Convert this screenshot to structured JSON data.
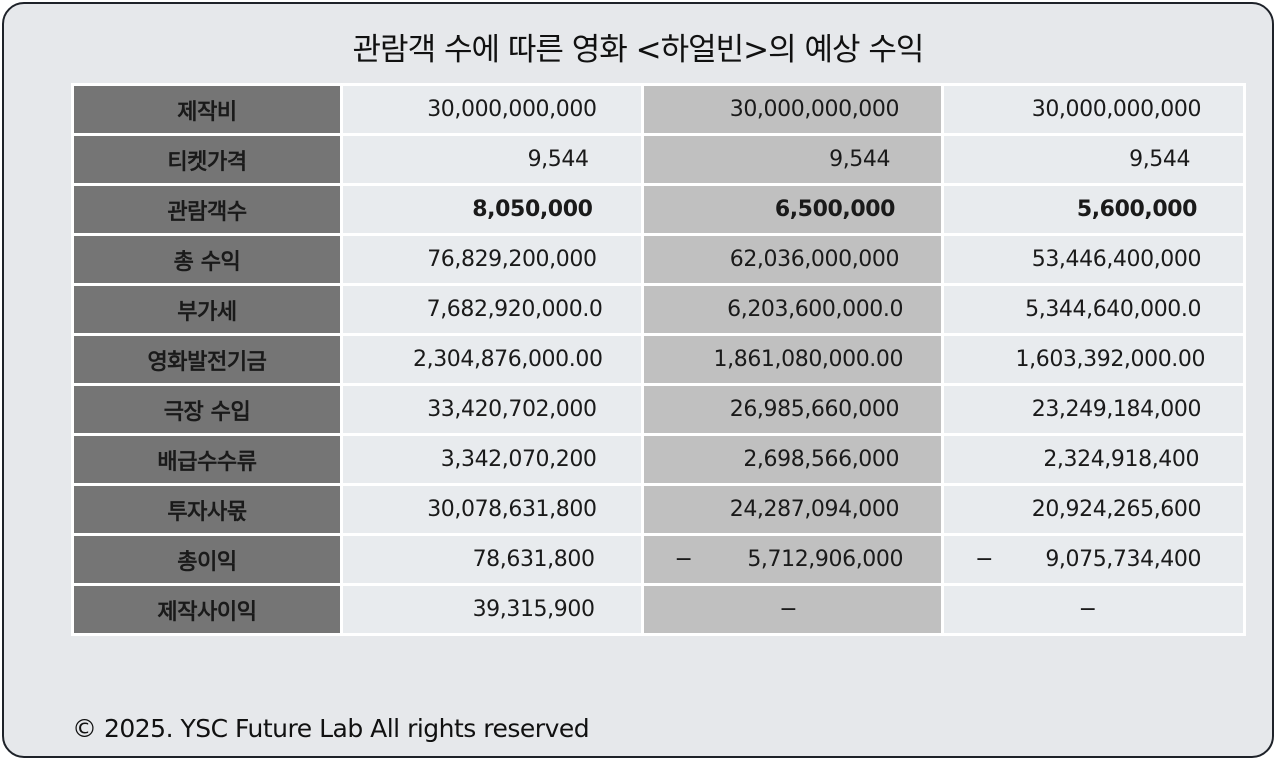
{
  "title": "관람객 수에 따른 영화 <하얼빈>의 예상 수익",
  "footer": "© 2025. YSC Future Lab All rights reserved",
  "rows": [
    {
      "label": "제작비",
      "bold": false,
      "values": [
        {
          "neg": "",
          "text": "30,000,000,000"
        },
        {
          "neg": "",
          "text": "30,000,000,000"
        },
        {
          "neg": "",
          "text": "30,000,000,000"
        }
      ]
    },
    {
      "label": "티켓가격",
      "bold": false,
      "values": [
        {
          "neg": "",
          "text": "9,544"
        },
        {
          "neg": "",
          "text": "9,544"
        },
        {
          "neg": "",
          "text": "9,544"
        }
      ]
    },
    {
      "label": "관람객수",
      "bold": true,
      "values": [
        {
          "neg": "",
          "text": "8,050,000"
        },
        {
          "neg": "",
          "text": "6,500,000"
        },
        {
          "neg": "",
          "text": "5,600,000"
        }
      ]
    },
    {
      "label": "총 수익",
      "bold": false,
      "values": [
        {
          "neg": "",
          "text": "76,829,200,000"
        },
        {
          "neg": "",
          "text": "62,036,000,000"
        },
        {
          "neg": "",
          "text": "53,446,400,000"
        }
      ]
    },
    {
      "label": "부가세",
      "bold": false,
      "values": [
        {
          "neg": "",
          "text": "7,682,920,000.0"
        },
        {
          "neg": "",
          "text": "6,203,600,000.0"
        },
        {
          "neg": "",
          "text": "5,344,640,000.0"
        }
      ]
    },
    {
      "label": "영화발전기금",
      "bold": false,
      "values": [
        {
          "neg": "",
          "text": "2,304,876,000.00"
        },
        {
          "neg": "",
          "text": "1,861,080,000.00"
        },
        {
          "neg": "",
          "text": "1,603,392,000.00"
        }
      ]
    },
    {
      "label": "극장 수입",
      "bold": false,
      "values": [
        {
          "neg": "",
          "text": "33,420,702,000"
        },
        {
          "neg": "",
          "text": "26,985,660,000"
        },
        {
          "neg": "",
          "text": "23,249,184,000"
        }
      ]
    },
    {
      "label": "배급수수류",
      "bold": false,
      "values": [
        {
          "neg": "",
          "text": "3,342,070,200"
        },
        {
          "neg": "",
          "text": "2,698,566,000"
        },
        {
          "neg": "",
          "text": "2,324,918,400"
        }
      ]
    },
    {
      "label": "투자사몫",
      "bold": false,
      "values": [
        {
          "neg": "",
          "text": "30,078,631,800"
        },
        {
          "neg": "",
          "text": "24,287,094,000"
        },
        {
          "neg": "",
          "text": "20,924,265,600"
        }
      ]
    },
    {
      "label": "총이익",
      "bold": false,
      "values": [
        {
          "neg": "",
          "text": "78,631,800"
        },
        {
          "neg": "−",
          "text": "5,712,906,000"
        },
        {
          "neg": "−",
          "text": "9,075,734,400"
        }
      ]
    },
    {
      "label": "제작사이익",
      "bold": false,
      "values": [
        {
          "neg": "",
          "text": "39,315,900"
        },
        {
          "neg": "",
          "text": "−"
        },
        {
          "neg": "",
          "text": "−"
        }
      ]
    }
  ]
}
